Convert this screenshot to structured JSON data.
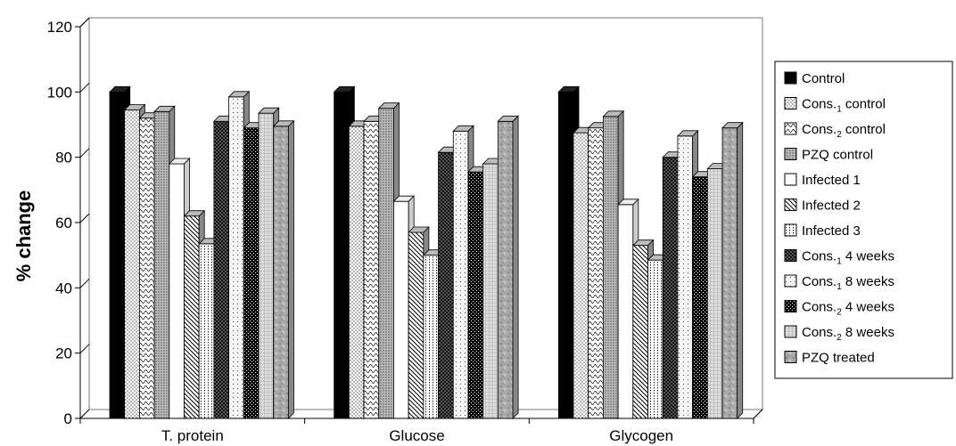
{
  "chart_data": {
    "type": "bar",
    "title": "",
    "xlabel": "",
    "ylabel": "% change",
    "ylim": [
      0,
      120
    ],
    "yticks": [
      "0",
      "20",
      "40",
      "60",
      "80",
      "100",
      "120"
    ],
    "grid": false,
    "legend_position": "right",
    "categories": [
      "T. protein",
      "Glucose",
      "Glycogen"
    ],
    "series": [
      {
        "name": "Control",
        "pattern": "solid-black",
        "values": [
          100,
          100,
          100
        ]
      },
      {
        "name": "Cons.1 control",
        "pattern": "fine-dots",
        "values": [
          94.5,
          89.5,
          87.5
        ]
      },
      {
        "name": "Cons.2 control",
        "pattern": "wave",
        "values": [
          92,
          91,
          89
        ]
      },
      {
        "name": "PZQ control",
        "pattern": "dense-stipple",
        "values": [
          94,
          95,
          92.5
        ]
      },
      {
        "name": "Infected 1",
        "pattern": "white",
        "values": [
          78,
          66.5,
          65.5
        ]
      },
      {
        "name": "Infected 2",
        "pattern": "diagonal-stripes",
        "values": [
          62,
          57,
          53
        ]
      },
      {
        "name": "Infected 3",
        "pattern": "vertical-dots",
        "values": [
          53.5,
          50,
          48.5
        ]
      },
      {
        "name": "Cons.1 4 weeks",
        "pattern": "dark-dots",
        "values": [
          91,
          81.5,
          80
        ]
      },
      {
        "name": "Cons.1 8 weeks",
        "pattern": "light-dots",
        "values": [
          98.5,
          88,
          86.5
        ]
      },
      {
        "name": "Cons.2 4 weeks",
        "pattern": "checker-dark",
        "values": [
          89,
          75.5,
          74
        ]
      },
      {
        "name": "Cons.2 8 weeks",
        "pattern": "light-grid",
        "values": [
          93.5,
          78,
          76.5
        ]
      },
      {
        "name": "PZQ treated",
        "pattern": "marble-gray",
        "values": [
          89.5,
          91,
          89
        ]
      }
    ]
  },
  "legend": {
    "items": [
      {
        "base": "Control",
        "sub": "",
        "tail": ""
      },
      {
        "base": "Cons.",
        "sub": "1",
        "tail": " control"
      },
      {
        "base": "Cons.",
        "sub": "2",
        "tail": " control"
      },
      {
        "base": "PZQ control",
        "sub": "",
        "tail": ""
      },
      {
        "base": "Infected 1",
        "sub": "",
        "tail": ""
      },
      {
        "base": "Infected 2",
        "sub": "",
        "tail": ""
      },
      {
        "base": "Infected 3",
        "sub": "",
        "tail": ""
      },
      {
        "base": "Cons.",
        "sub": "1",
        "tail": " 4 weeks"
      },
      {
        "base": "Cons.",
        "sub": "1",
        "tail": " 8 weeks"
      },
      {
        "base": "Cons.",
        "sub": "2",
        "tail": " 4 weeks"
      },
      {
        "base": "Cons.",
        "sub": "2",
        "tail": " 8 weeks"
      },
      {
        "base": "PZQ treated",
        "sub": "",
        "tail": ""
      }
    ]
  }
}
